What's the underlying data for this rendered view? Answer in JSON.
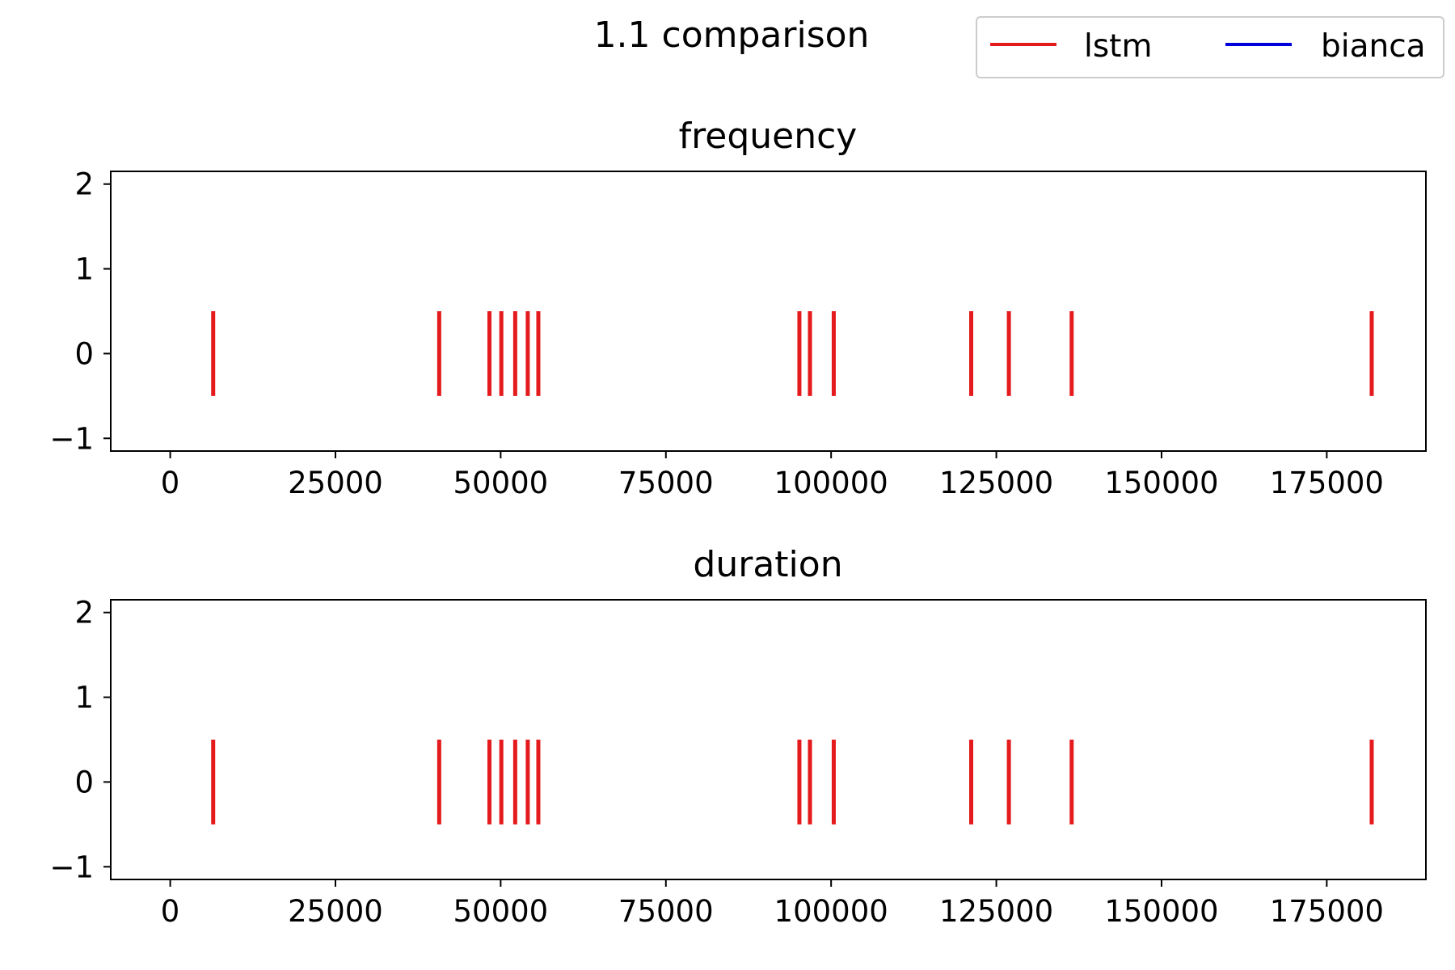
{
  "figure": {
    "suptitle": "1.1 comparison"
  },
  "legend": {
    "placement": "top-right",
    "entries": [
      {
        "label": "lstm",
        "color": "#e41a1c"
      },
      {
        "label": "bianca",
        "color": "#0000dd"
      }
    ]
  },
  "chart_data": [
    {
      "type": "eventplot",
      "title": "frequency",
      "xlabel": "",
      "ylabel": "",
      "xlim": [
        -9000,
        190000
      ],
      "ylim": [
        -1.15,
        2.15
      ],
      "xticks": [
        0,
        25000,
        50000,
        75000,
        100000,
        125000,
        150000,
        175000
      ],
      "yticks": [
        -1,
        0,
        1,
        2
      ],
      "ytick_labels": [
        "−1",
        "0",
        "1",
        "2"
      ],
      "grid": false,
      "series": [
        {
          "name": "lstm",
          "color": "#e41a1c",
          "lineoffset": 0,
          "linelength": 1,
          "events": [
            6500,
            40700,
            48300,
            50100,
            52200,
            54100,
            55700,
            95200,
            96800,
            100400,
            121200,
            126900,
            136400,
            181800
          ]
        },
        {
          "name": "bianca",
          "color": "#0000dd",
          "lineoffset": 0,
          "linelength": 1,
          "events": []
        }
      ]
    },
    {
      "type": "eventplot",
      "title": "duration",
      "xlabel": "",
      "ylabel": "",
      "xlim": [
        -9000,
        190000
      ],
      "ylim": [
        -1.15,
        2.15
      ],
      "xticks": [
        0,
        25000,
        50000,
        75000,
        100000,
        125000,
        150000,
        175000
      ],
      "yticks": [
        -1,
        0,
        1,
        2
      ],
      "ytick_labels": [
        "−1",
        "0",
        "1",
        "2"
      ],
      "grid": false,
      "series": [
        {
          "name": "lstm",
          "color": "#e41a1c",
          "lineoffset": 0,
          "linelength": 1,
          "events": [
            6500,
            40700,
            48300,
            50100,
            52200,
            54100,
            55700,
            95200,
            96800,
            100400,
            121200,
            126900,
            136400,
            181800
          ]
        },
        {
          "name": "bianca",
          "color": "#0000dd",
          "lineoffset": 0,
          "linelength": 1,
          "events": []
        }
      ]
    }
  ]
}
